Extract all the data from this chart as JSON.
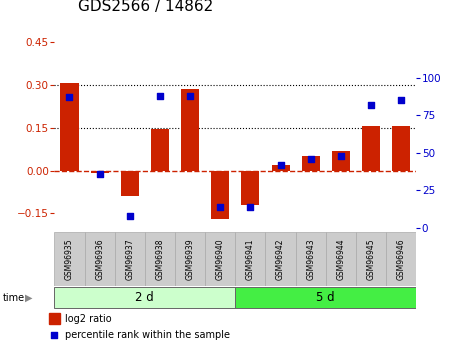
{
  "title": "GDS2566 / 14862",
  "samples": [
    "GSM96935",
    "GSM96936",
    "GSM96937",
    "GSM96938",
    "GSM96939",
    "GSM96940",
    "GSM96941",
    "GSM96942",
    "GSM96943",
    "GSM96944",
    "GSM96945",
    "GSM96946"
  ],
  "log2_ratio": [
    0.305,
    -0.01,
    -0.09,
    0.145,
    0.285,
    -0.17,
    -0.12,
    0.02,
    0.05,
    0.07,
    0.155,
    0.155
  ],
  "percentile_rank": [
    87,
    36,
    8,
    88,
    88,
    14,
    14,
    42,
    46,
    48,
    82,
    85
  ],
  "group1_label": "2 d",
  "group2_label": "5 d",
  "group1_count": 6,
  "group2_count": 6,
  "ylim_left": [
    -0.2,
    0.5
  ],
  "ylim_right": [
    0,
    133.33
  ],
  "yticks_left": [
    -0.15,
    0,
    0.15,
    0.3,
    0.45
  ],
  "yticks_right": [
    0,
    25,
    50,
    75,
    100
  ],
  "hlines": [
    0.15,
    0.3
  ],
  "bar_color": "#cc2200",
  "dot_color": "#0000cc",
  "zero_line_color": "#cc2200",
  "group1_color": "#ccffcc",
  "group2_color": "#44ee44",
  "tick_label_color_left": "#cc2200",
  "tick_label_color_right": "#0000cc",
  "legend_bar_label": "log2 ratio",
  "legend_dot_label": "percentile rank within the sample",
  "title_fontsize": 11,
  "axis_fontsize": 7.5,
  "bar_width": 0.6,
  "label_box_color": "#cccccc",
  "label_box_edge": "#aaaaaa"
}
